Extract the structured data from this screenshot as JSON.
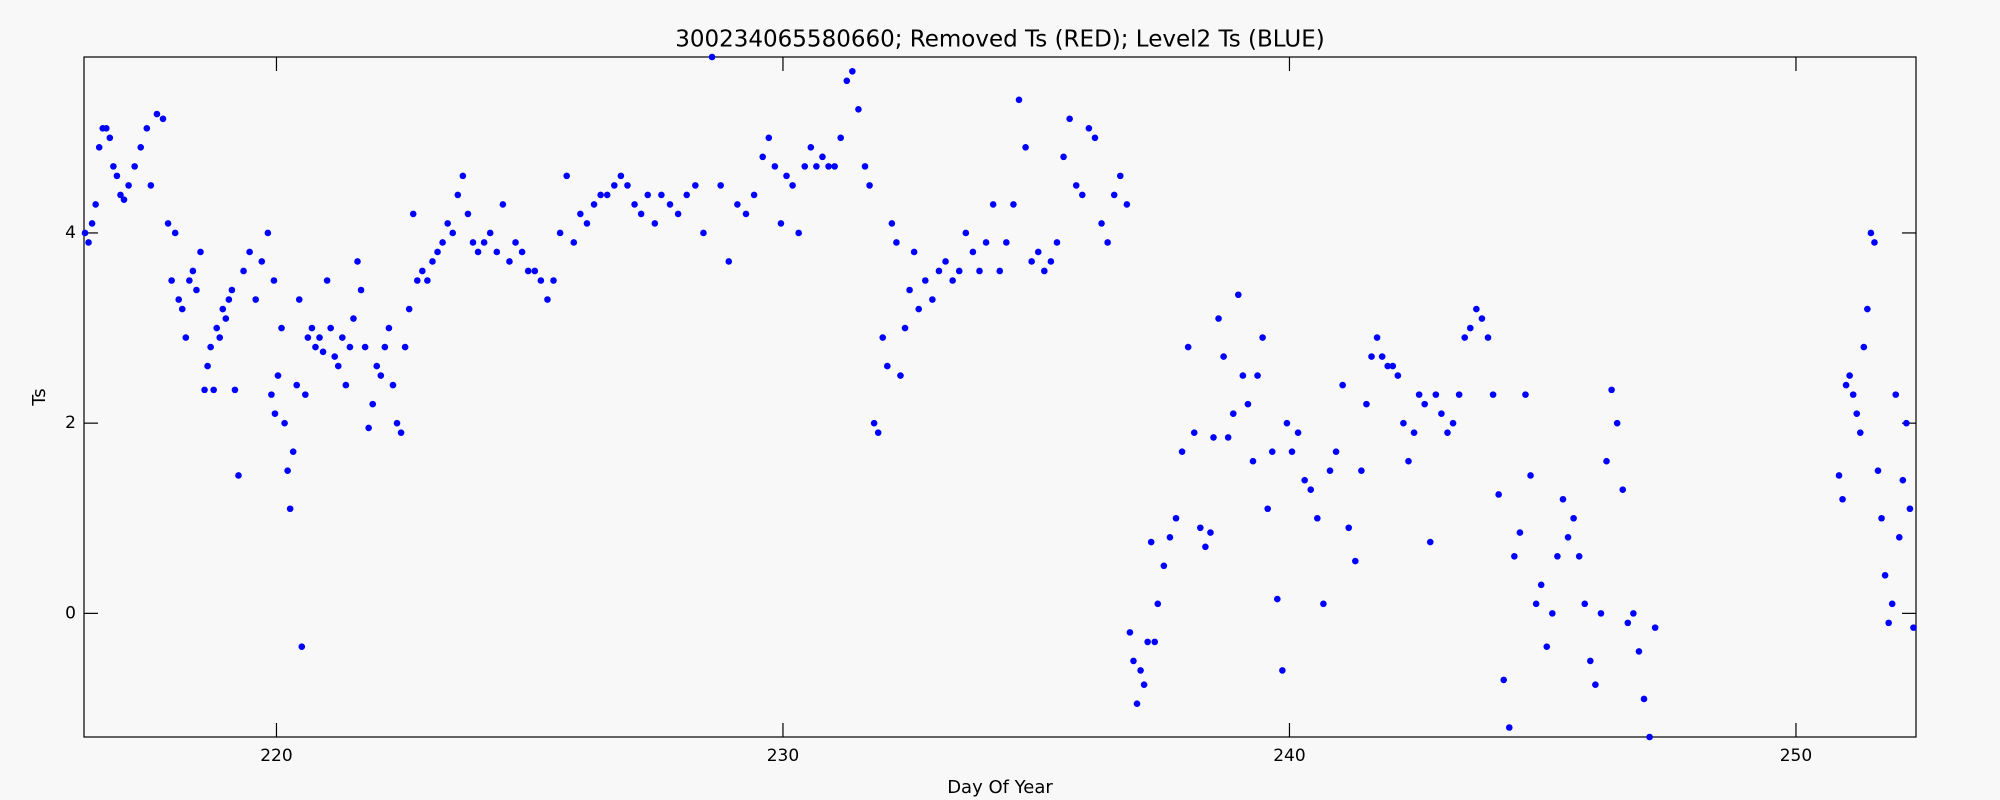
{
  "chart_data": {
    "type": "scatter",
    "title": "300234065580660; Removed Ts (RED); Level2 Ts (BLUE)",
    "x_label": "Day Of Year",
    "y_label": "Ts",
    "color": "#0000ff",
    "xlim": [
      216.2,
      252.37
    ],
    "ylim": [
      -1.3,
      5.85
    ],
    "xticks": [
      220,
      230,
      240,
      250
    ],
    "yticks": [
      0,
      2,
      4
    ],
    "x": [
      216.22,
      216.29,
      216.36,
      216.43,
      216.5,
      216.57,
      216.64,
      216.71,
      216.78,
      216.85,
      216.92,
      216.99,
      217.08,
      217.2,
      217.32,
      217.44,
      217.52,
      217.64,
      217.76,
      217.86,
      217.93,
      218.0,
      218.07,
      218.14,
      218.21,
      218.28,
      218.35,
      218.42,
      218.5,
      218.58,
      218.64,
      218.7,
      218.76,
      218.82,
      218.88,
      218.94,
      219.0,
      219.06,
      219.12,
      219.18,
      219.25,
      219.35,
      219.47,
      219.59,
      219.71,
      219.83,
      219.95,
      219.9,
      219.97,
      220.03,
      220.1,
      220.16,
      220.22,
      220.27,
      220.33,
      220.4,
      220.45,
      220.5,
      220.57,
      220.62,
      220.7,
      220.77,
      220.85,
      220.92,
      221.0,
      221.07,
      221.15,
      221.22,
      221.3,
      221.37,
      221.45,
      221.52,
      221.6,
      221.67,
      221.75,
      221.82,
      221.9,
      221.98,
      222.06,
      222.14,
      222.22,
      222.3,
      222.38,
      222.46,
      222.54,
      222.62,
      222.7,
      222.78,
      222.88,
      222.98,
      223.08,
      223.18,
      223.28,
      223.38,
      223.48,
      223.58,
      223.68,
      223.78,
      223.88,
      223.98,
      224.1,
      224.22,
      224.35,
      224.47,
      224.6,
      224.72,
      224.85,
      224.97,
      225.1,
      225.22,
      225.35,
      225.47,
      225.6,
      225.73,
      225.87,
      226.0,
      226.13,
      226.27,
      226.4,
      226.53,
      226.67,
      226.8,
      226.93,
      227.07,
      227.2,
      227.33,
      227.47,
      227.6,
      227.77,
      227.93,
      228.1,
      228.27,
      228.43,
      228.6,
      228.77,
      228.93,
      229.1,
      229.27,
      229.43,
      229.6,
      229.72,
      229.84,
      229.96,
      230.07,
      230.19,
      230.31,
      230.43,
      230.55,
      230.66,
      230.78,
      230.9,
      231.02,
      231.14,
      231.26,
      231.37,
      231.49,
      231.62,
      231.71,
      231.8,
      231.88,
      231.97,
      232.06,
      232.15,
      232.24,
      232.32,
      232.41,
      232.5,
      232.59,
      232.68,
      232.81,
      232.95,
      233.08,
      233.21,
      233.35,
      233.48,
      233.61,
      233.75,
      233.88,
      234.01,
      234.15,
      234.28,
      234.41,
      234.55,
      234.66,
      234.79,
      234.91,
      235.04,
      235.16,
      235.29,
      235.41,
      235.54,
      235.66,
      235.79,
      235.91,
      236.04,
      236.16,
      236.29,
      236.41,
      236.54,
      236.66,
      236.79,
      236.85,
      236.92,
      236.99,
      237.06,
      237.13,
      237.2,
      237.27,
      237.34,
      237.4,
      237.52,
      237.64,
      237.76,
      237.88,
      238.0,
      238.12,
      238.24,
      238.34,
      238.44,
      238.5,
      238.6,
      238.7,
      238.79,
      238.89,
      238.99,
      239.08,
      239.18,
      239.28,
      239.37,
      239.47,
      239.57,
      239.66,
      239.76,
      239.86,
      239.95,
      240.05,
      240.17,
      240.3,
      240.42,
      240.55,
      240.67,
      240.8,
      240.92,
      241.05,
      241.17,
      241.3,
      241.42,
      241.52,
      241.62,
      241.73,
      241.83,
      241.94,
      242.04,
      242.14,
      242.25,
      242.35,
      242.46,
      242.56,
      242.67,
      242.78,
      242.89,
      243.0,
      243.12,
      243.23,
      243.35,
      243.46,
      243.57,
      243.69,
      243.8,
      243.92,
      244.02,
      244.13,
      244.23,
      244.34,
      244.44,
      244.55,
      244.66,
      244.76,
      244.87,
      244.97,
      245.08,
      245.19,
      245.29,
      245.4,
      245.5,
      245.61,
      245.72,
      245.83,
      245.94,
      246.04,
      246.15,
      246.26,
      246.36,
      246.47,
      246.58,
      246.68,
      246.79,
      246.9,
      247.0,
      247.11,
      247.22,
      250.85,
      250.92,
      250.99,
      251.06,
      251.13,
      251.2,
      251.27,
      251.34,
      251.41,
      251.48,
      251.55,
      251.62,
      251.69,
      251.76,
      251.83,
      251.9,
      251.97,
      252.04,
      252.11,
      252.18,
      252.25,
      252.32
    ],
    "values": [
      4.0,
      3.9,
      4.1,
      4.3,
      4.9,
      5.1,
      5.1,
      5.0,
      4.7,
      4.6,
      4.4,
      4.35,
      4.5,
      4.7,
      4.9,
      5.1,
      4.5,
      5.25,
      5.2,
      4.1,
      3.5,
      4.0,
      3.3,
      3.2,
      2.9,
      3.5,
      3.6,
      3.4,
      3.8,
      2.35,
      2.6,
      2.8,
      2.35,
      3.0,
      2.9,
      3.2,
      3.1,
      3.3,
      3.4,
      2.35,
      1.45,
      3.6,
      3.8,
      3.3,
      3.7,
      4.0,
      3.5,
      2.3,
      2.1,
      2.5,
      3.0,
      2.0,
      1.5,
      1.1,
      1.7,
      2.4,
      3.3,
      -0.35,
      2.3,
      2.9,
      3.0,
      2.8,
      2.9,
      2.75,
      3.5,
      3.0,
      2.7,
      2.6,
      2.9,
      2.4,
      2.8,
      3.1,
      3.7,
      3.4,
      2.8,
      1.95,
      2.2,
      2.6,
      2.5,
      2.8,
      3.0,
      2.4,
      2.0,
      1.9,
      2.8,
      3.2,
      4.2,
      3.5,
      3.6,
      3.5,
      3.7,
      3.8,
      3.9,
      4.1,
      4.0,
      4.4,
      4.6,
      4.2,
      3.9,
      3.8,
      3.9,
      4.0,
      3.8,
      4.3,
      3.7,
      3.9,
      3.8,
      3.6,
      3.6,
      3.5,
      3.3,
      3.5,
      4.0,
      4.6,
      3.9,
      4.2,
      4.1,
      4.3,
      4.4,
      4.4,
      4.5,
      4.6,
      4.5,
      4.3,
      4.2,
      4.4,
      4.1,
      4.4,
      4.3,
      4.2,
      4.4,
      4.5,
      4.0,
      5.85,
      4.5,
      3.7,
      4.3,
      4.2,
      4.4,
      4.8,
      5.0,
      4.7,
      4.1,
      4.6,
      4.5,
      4.0,
      4.7,
      4.9,
      4.7,
      4.8,
      4.7,
      4.7,
      5.0,
      5.6,
      5.7,
      5.3,
      4.7,
      4.5,
      2.0,
      1.9,
      2.9,
      2.6,
      4.1,
      3.9,
      2.5,
      3.0,
      3.4,
      3.8,
      3.2,
      3.5,
      3.3,
      3.6,
      3.7,
      3.5,
      3.6,
      4.0,
      3.8,
      3.6,
      3.9,
      4.3,
      3.6,
      3.9,
      4.3,
      5.4,
      4.9,
      3.7,
      3.8,
      3.6,
      3.7,
      3.9,
      4.8,
      5.2,
      4.5,
      4.4,
      5.1,
      5.0,
      4.1,
      3.9,
      4.4,
      4.6,
      4.3,
      -0.2,
      -0.5,
      -0.95,
      -0.6,
      -0.75,
      -0.3,
      0.75,
      -0.3,
      0.1,
      0.5,
      0.8,
      1.0,
      1.7,
      2.8,
      1.9,
      0.9,
      0.7,
      0.85,
      1.85,
      3.1,
      2.7,
      1.85,
      2.1,
      3.35,
      2.5,
      2.2,
      1.6,
      2.5,
      2.9,
      1.1,
      1.7,
      0.15,
      -0.6,
      2.0,
      1.7,
      1.9,
      1.4,
      1.3,
      1.0,
      0.1,
      1.5,
      1.7,
      2.4,
      0.9,
      0.55,
      1.5,
      2.2,
      2.7,
      2.9,
      2.7,
      2.6,
      2.6,
      2.5,
      2.0,
      1.6,
      1.9,
      2.3,
      2.2,
      0.75,
      2.3,
      2.1,
      1.9,
      2.0,
      2.3,
      2.9,
      3.0,
      3.2,
      3.1,
      2.9,
      2.3,
      1.25,
      -0.7,
      -1.2,
      0.6,
      0.85,
      2.3,
      1.45,
      0.1,
      0.3,
      -0.35,
      0.0,
      0.6,
      1.2,
      0.8,
      1.0,
      0.6,
      0.1,
      -0.5,
      -0.75,
      0.0,
      1.6,
      2.35,
      2.0,
      1.3,
      -0.1,
      0.0,
      -0.4,
      -0.9,
      -1.3,
      -0.15,
      1.45,
      1.2,
      2.4,
      2.5,
      2.3,
      2.1,
      1.9,
      2.8,
      3.2,
      4.0,
      3.9,
      1.5,
      1.0,
      0.4,
      -0.1,
      0.1,
      2.3,
      0.8,
      1.4,
      2.0,
      1.1,
      -0.15
    ]
  }
}
